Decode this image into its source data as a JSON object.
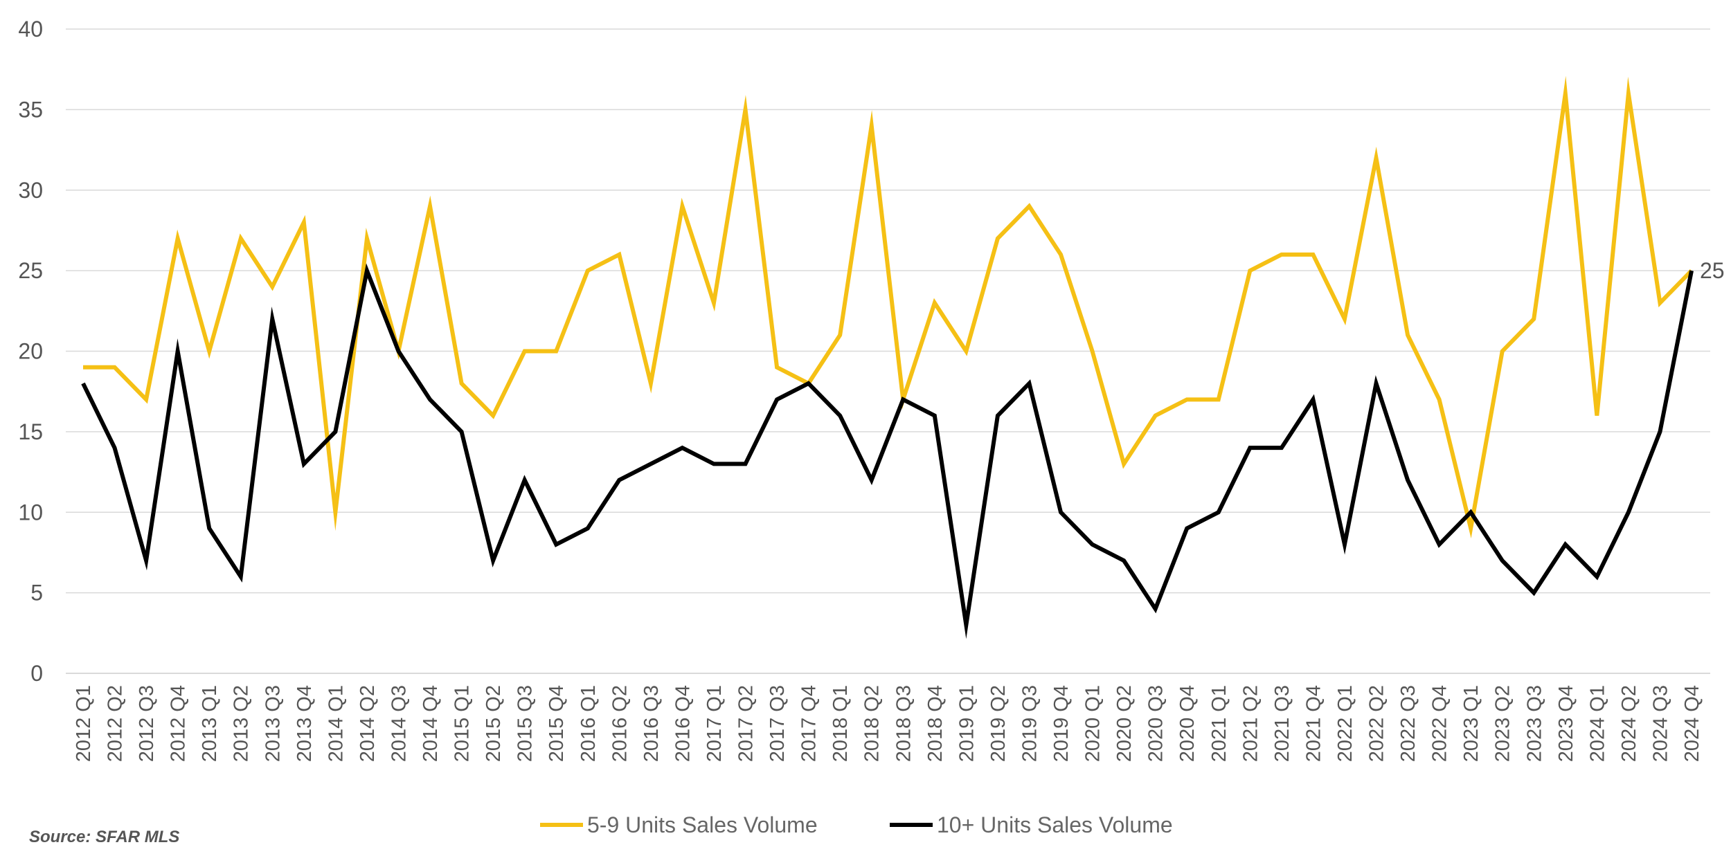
{
  "source_note": "Source: SFAR MLS",
  "colors": {
    "series_1": "#F5C015",
    "series_2": "#000000",
    "grid": "#d9d9d9",
    "text": "#555555"
  },
  "chart_data": {
    "type": "line",
    "categories": [
      "2012 Q1",
      "2012 Q2",
      "2012 Q3",
      "2012 Q4",
      "2013 Q1",
      "2013 Q2",
      "2013 Q3",
      "2013 Q4",
      "2014 Q1",
      "2014 Q2",
      "2014 Q3",
      "2014 Q4",
      "2015 Q1",
      "2015 Q2",
      "2015 Q3",
      "2015 Q4",
      "2016 Q1",
      "2016 Q2",
      "2016 Q3",
      "2016 Q4",
      "2017 Q1",
      "2017 Q2",
      "2017 Q3",
      "2017 Q4",
      "2018 Q1",
      "2018 Q2",
      "2018 Q3",
      "2018 Q4",
      "2019 Q1",
      "2019 Q2",
      "2019 Q3",
      "2019 Q4",
      "2020 Q1",
      "2020 Q2",
      "2020 Q3",
      "2020 Q4",
      "2021 Q1",
      "2021 Q2",
      "2021 Q3",
      "2021 Q4",
      "2022 Q1",
      "2022 Q2",
      "2022 Q3",
      "2022 Q4",
      "2023 Q1",
      "2023 Q2",
      "2023 Q3",
      "2023 Q4",
      "2024 Q1",
      "2024 Q2",
      "2024 Q3",
      "2024 Q4"
    ],
    "series": [
      {
        "name": "5-9 Units Sales Volume",
        "color": "#F5C015",
        "values": [
          19,
          19,
          17,
          27,
          20,
          27,
          24,
          28,
          10,
          27,
          20,
          29,
          18,
          16,
          20,
          20,
          25,
          26,
          18,
          29,
          23,
          35,
          19,
          18,
          21,
          34,
          17,
          23,
          20,
          27,
          29,
          26,
          20,
          13,
          16,
          17,
          17,
          25,
          26,
          26,
          22,
          32,
          21,
          17,
          9,
          20,
          22,
          36,
          16,
          36,
          23,
          25
        ]
      },
      {
        "name": "10+ Units Sales Volume",
        "color": "#000000",
        "values": [
          18,
          14,
          7,
          20,
          9,
          6,
          22,
          13,
          15,
          25,
          20,
          17,
          15,
          7,
          12,
          8,
          9,
          12,
          13,
          14,
          13,
          13,
          17,
          18,
          16,
          12,
          17,
          16,
          3,
          16,
          18,
          10,
          8,
          7,
          4,
          9,
          10,
          14,
          14,
          17,
          8,
          18,
          12,
          8,
          10,
          7,
          5,
          8,
          6,
          10,
          15,
          25
        ]
      }
    ],
    "ylim": [
      0,
      40
    ],
    "yticks": [
      0,
      5,
      10,
      15,
      20,
      25,
      30,
      35,
      40
    ],
    "grid": true,
    "legend": "bottom-center",
    "annotations": [
      {
        "series_index": 1,
        "point_index": 51,
        "text": "25"
      }
    ]
  }
}
